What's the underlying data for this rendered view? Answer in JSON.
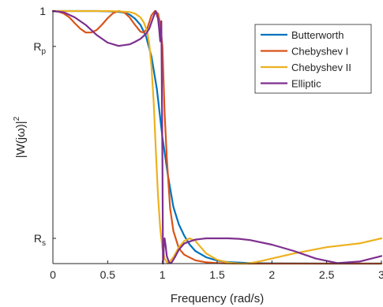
{
  "chart_data": {
    "type": "line",
    "title": "",
    "xlabel": "Frequency (rad/s)",
    "ylabel_base": "|W(jω)|",
    "ylabel_exp": "2",
    "xlim": [
      0,
      3
    ],
    "ylim": [
      0,
      1
    ],
    "grid": false,
    "legend_position": "top-right",
    "x_ticks": [
      {
        "value": 0,
        "label": "0"
      },
      {
        "value": 0.5,
        "label": "0.5"
      },
      {
        "value": 1,
        "label": "1"
      },
      {
        "value": 1.5,
        "label": "1.5"
      },
      {
        "value": 2,
        "label": "2"
      },
      {
        "value": 2.5,
        "label": "2.5"
      },
      {
        "value": 3,
        "label": "3"
      }
    ],
    "y_ticks": [
      {
        "value": 0.1,
        "label": "R",
        "sub": "s"
      },
      {
        "value": 0.86,
        "label": "R",
        "sub": "p"
      },
      {
        "value": 1,
        "label": "1",
        "sub": ""
      }
    ],
    "series": [
      {
        "name": "Butterworth",
        "color": "#0072BD",
        "x": [
          0,
          0.2,
          0.4,
          0.5,
          0.6,
          0.65,
          0.7,
          0.75,
          0.8,
          0.85,
          0.9,
          0.95,
          1.0,
          1.05,
          1.1,
          1.15,
          1.2,
          1.25,
          1.3,
          1.4,
          1.5,
          1.6,
          1.8,
          2.0,
          2.5,
          3.0
        ],
        "y": [
          1.0,
          1.0,
          1.0,
          0.999,
          0.997,
          0.994,
          0.986,
          0.97,
          0.945,
          0.9,
          0.82,
          0.69,
          0.5,
          0.35,
          0.225,
          0.155,
          0.11,
          0.075,
          0.05,
          0.025,
          0.012,
          0.006,
          0.002,
          0.001,
          0.0,
          0.0
        ]
      },
      {
        "name": "Chebyshev I",
        "color": "#D95319",
        "x": [
          0,
          0.05,
          0.1,
          0.15,
          0.2,
          0.25,
          0.3,
          0.35,
          0.4,
          0.45,
          0.5,
          0.55,
          0.6,
          0.65,
          0.7,
          0.75,
          0.8,
          0.83,
          0.86,
          0.88,
          0.9,
          0.93,
          0.96,
          0.98,
          1.0,
          1.02,
          1.04,
          1.07,
          1.1,
          1.15,
          1.2,
          1.3,
          1.4,
          1.5,
          1.7,
          2.0,
          3.0
        ],
        "y": [
          1.0,
          0.998,
          0.99,
          0.975,
          0.952,
          0.93,
          0.915,
          0.915,
          0.925,
          0.947,
          0.972,
          0.992,
          1.0,
          0.995,
          0.975,
          0.945,
          0.918,
          0.915,
          0.93,
          0.955,
          0.983,
          1.0,
          0.99,
          0.95,
          0.86,
          0.6,
          0.42,
          0.22,
          0.13,
          0.06,
          0.035,
          0.013,
          0.005,
          0.002,
          0.0,
          0.0,
          0.0
        ]
      },
      {
        "name": "Chebyshev II",
        "color": "#EDB120",
        "x": [
          0,
          0.3,
          0.5,
          0.6,
          0.7,
          0.75,
          0.8,
          0.83,
          0.86,
          0.88,
          0.9,
          0.92,
          0.94,
          0.96,
          0.98,
          1.0,
          1.02,
          1.05,
          1.1,
          1.15,
          1.2,
          1.25,
          1.3,
          1.35,
          1.4,
          1.5,
          1.6,
          1.7,
          1.75,
          1.8,
          1.9,
          2.0,
          2.2,
          2.5,
          2.8,
          3.0
        ],
        "y": [
          1.0,
          1.0,
          1.0,
          0.999,
          0.996,
          0.99,
          0.975,
          0.955,
          0.92,
          0.87,
          0.78,
          0.64,
          0.45,
          0.27,
          0.14,
          0.06,
          0.02,
          0.0,
          0.025,
          0.065,
          0.09,
          0.1,
          0.09,
          0.065,
          0.04,
          0.015,
          0.004,
          0.0,
          0.0,
          0.002,
          0.01,
          0.02,
          0.04,
          0.065,
          0.08,
          0.1
        ]
      },
      {
        "name": "Elliptic",
        "color": "#7E2F8E",
        "x": [
          0,
          0.1,
          0.2,
          0.3,
          0.4,
          0.5,
          0.6,
          0.7,
          0.75,
          0.8,
          0.85,
          0.88,
          0.9,
          0.92,
          0.94,
          0.96,
          0.97,
          0.98,
          0.99,
          1.0,
          1.005,
          1.01,
          1.015,
          1.02,
          1.03,
          1.04,
          1.06,
          1.08,
          1.1,
          1.12,
          1.15,
          1.2,
          1.3,
          1.4,
          1.5,
          1.6,
          1.7,
          1.8,
          2.0,
          2.2,
          2.4,
          2.6,
          2.8,
          3.0
        ],
        "y": [
          1.0,
          0.995,
          0.975,
          0.945,
          0.905,
          0.875,
          0.862,
          0.868,
          0.878,
          0.89,
          0.91,
          0.93,
          0.955,
          0.98,
          1.0,
          0.97,
          0.93,
          0.88,
          0.96,
          0.4,
          0.0,
          0.035,
          0.09,
          0.1,
          0.07,
          0.03,
          0.005,
          0.002,
          0.015,
          0.03,
          0.055,
          0.08,
          0.095,
          0.1,
          0.1,
          0.1,
          0.098,
          0.093,
          0.075,
          0.05,
          0.02,
          0.002,
          0.008,
          0.03
        ]
      }
    ]
  }
}
